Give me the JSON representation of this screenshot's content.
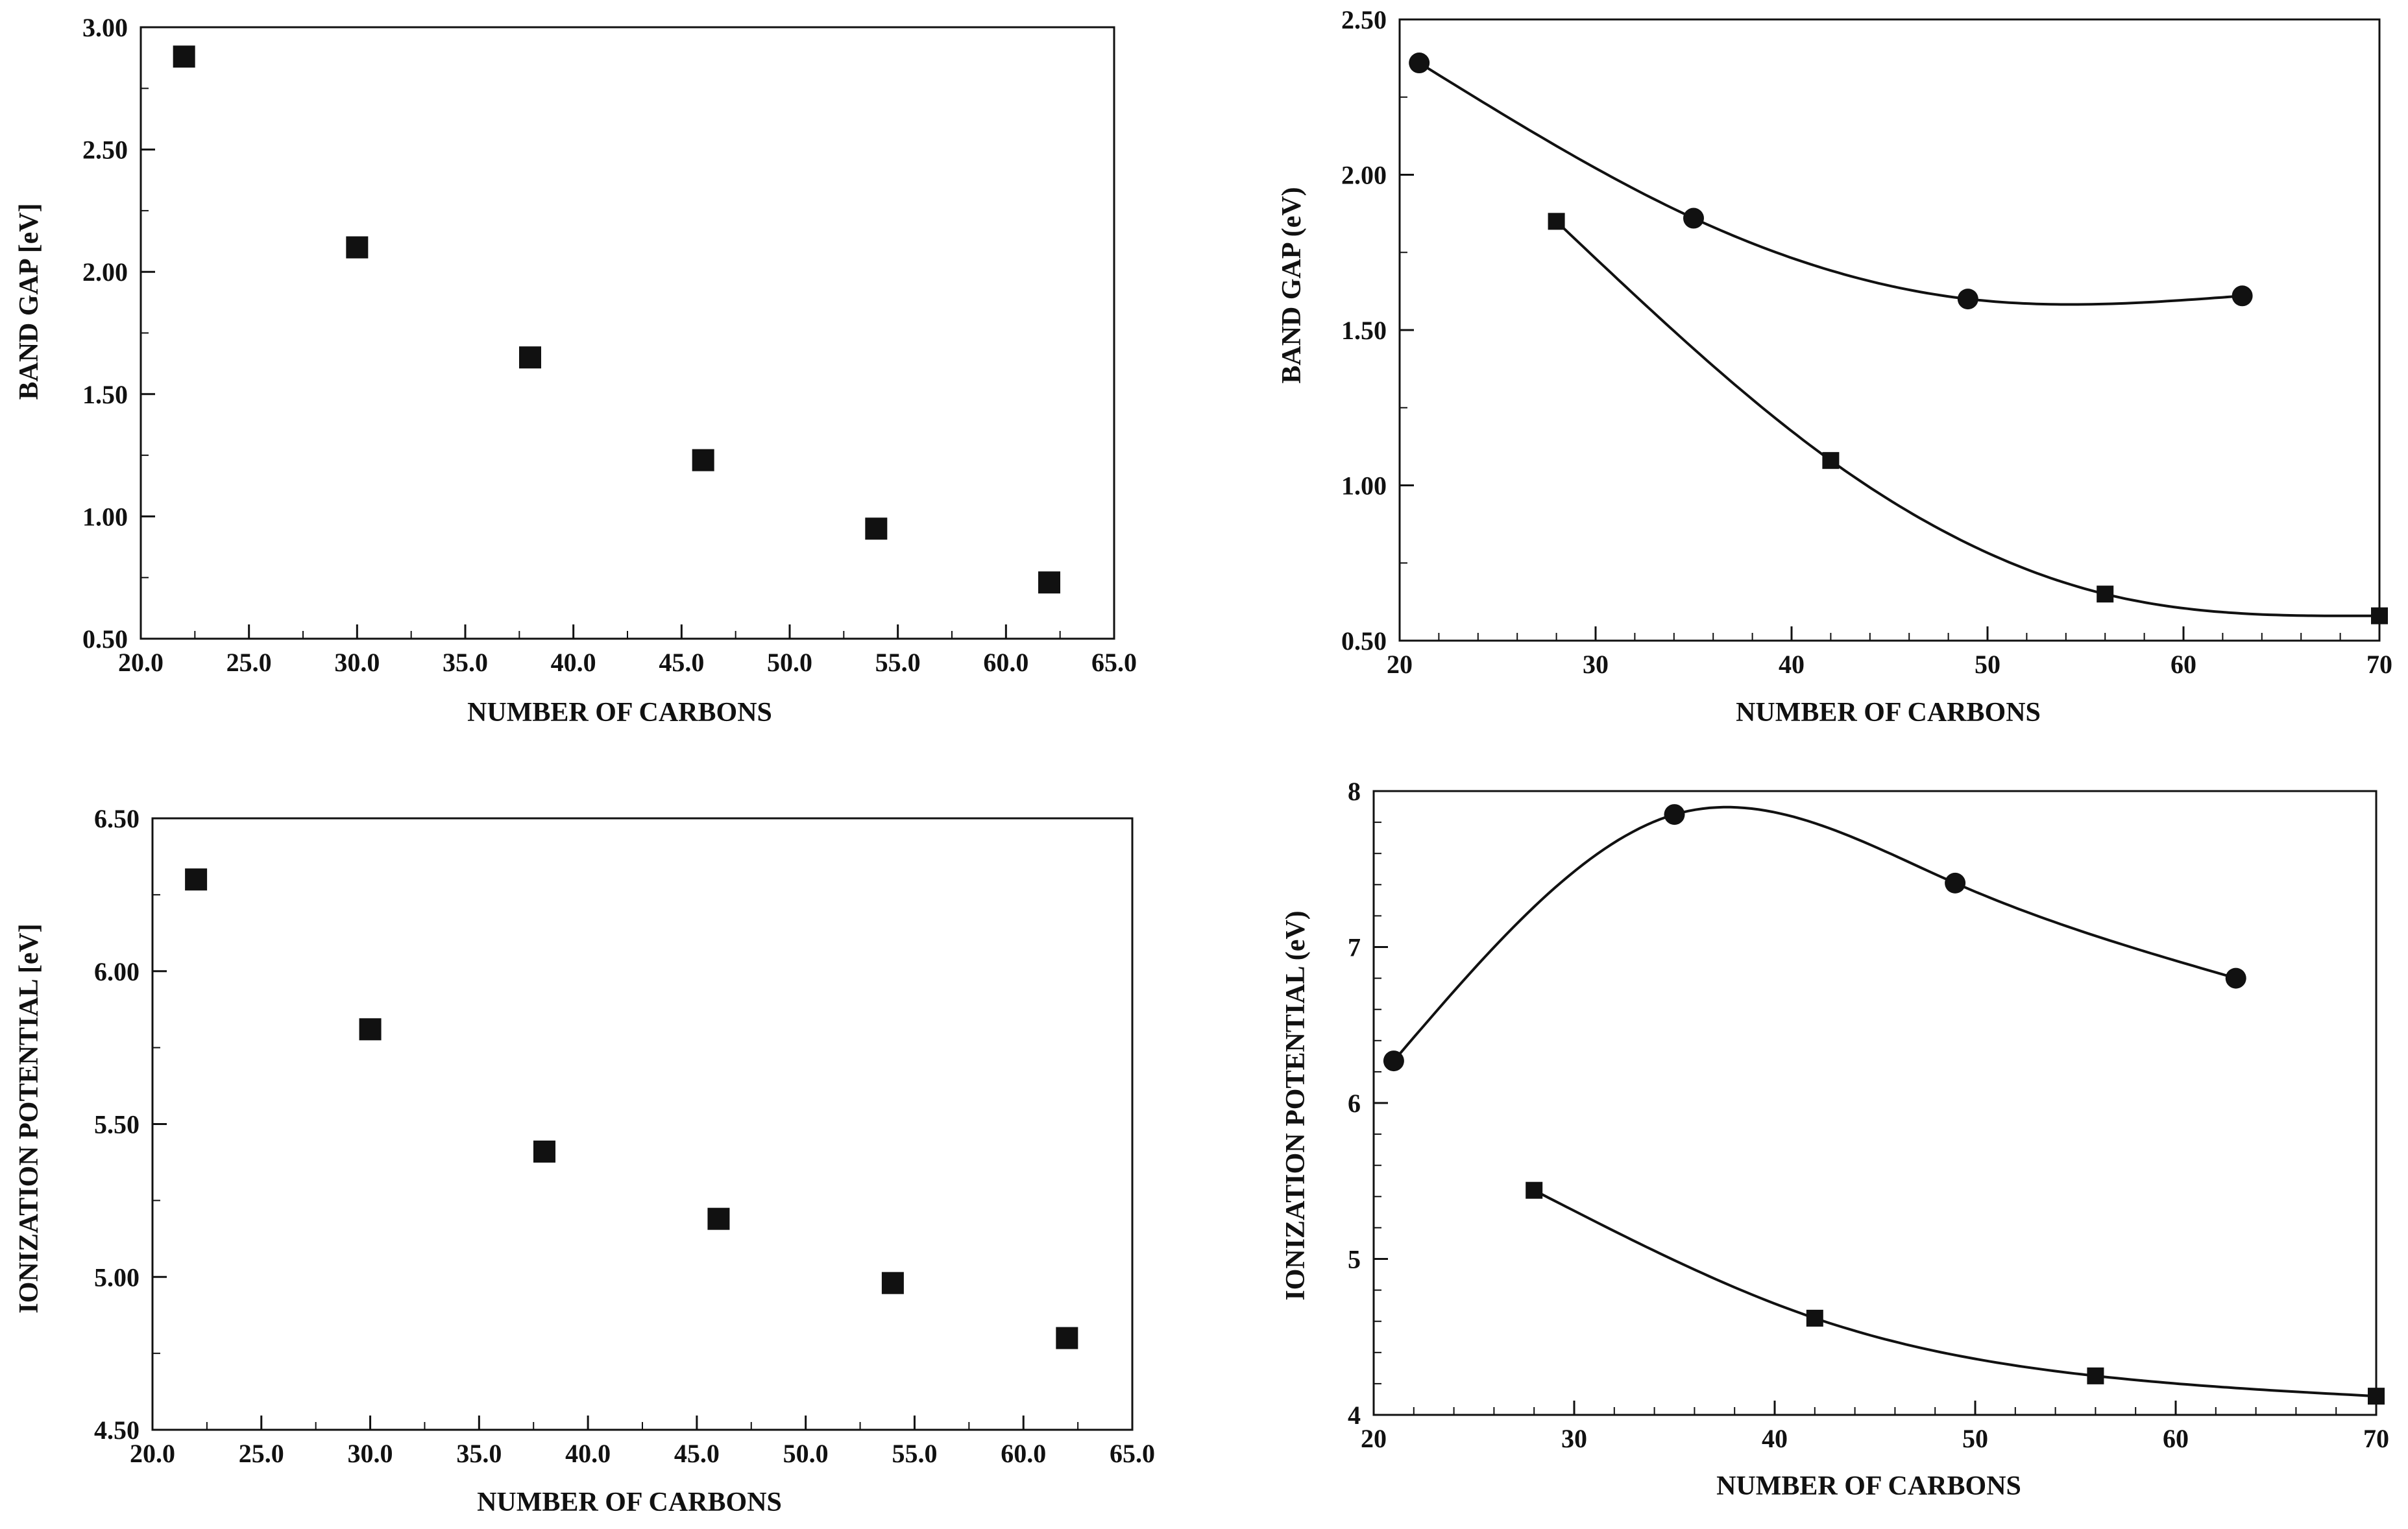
{
  "figure": {
    "background_color": "#ffffff",
    "ink_color": "#111111"
  },
  "chart_data": [
    {
      "id": "top-left",
      "type": "scatter",
      "title": "",
      "xlabel": "NUMBER OF CARBONS",
      "ylabel": "BAND GAP [eV]",
      "xlim": [
        20,
        65
      ],
      "ylim": [
        0.5,
        3.0
      ],
      "grid": false,
      "xticks": [
        "20.0",
        "25.0",
        "30.0",
        "35.0",
        "40.0",
        "45.0",
        "50.0",
        "55.0",
        "60.0",
        "65.0"
      ],
      "yticks": [
        "0.50",
        "1.00",
        "1.50",
        "2.00",
        "2.50",
        "3.00"
      ],
      "series": [
        {
          "name": "squares",
          "marker": "square",
          "curve": false,
          "x": [
            22,
            30,
            38,
            46,
            54,
            62
          ],
          "y": [
            2.88,
            2.1,
            1.65,
            1.23,
            0.95,
            0.73
          ]
        }
      ]
    },
    {
      "id": "top-right",
      "type": "line",
      "title": "",
      "xlabel": "NUMBER OF CARBONS",
      "ylabel": "BAND GAP (eV)",
      "xlim": [
        20,
        70
      ],
      "ylim": [
        0.5,
        2.5
      ],
      "grid": false,
      "xticks": [
        "20",
        "30",
        "40",
        "50",
        "60",
        "70"
      ],
      "yticks": [
        "0.50",
        "1.00",
        "1.50",
        "2.00",
        "2.50"
      ],
      "series": [
        {
          "name": "circles",
          "marker": "circle",
          "curve": true,
          "x": [
            21,
            35,
            49,
            63
          ],
          "y": [
            2.36,
            1.86,
            1.6,
            1.61
          ]
        },
        {
          "name": "squares",
          "marker": "square",
          "curve": true,
          "x": [
            28,
            42,
            56,
            70
          ],
          "y": [
            1.85,
            1.08,
            0.65,
            0.58
          ]
        }
      ]
    },
    {
      "id": "bottom-left",
      "type": "scatter",
      "title": "",
      "xlabel": "NUMBER OF CARBONS",
      "ylabel": "IONIZATION POTENTIAL [eV]",
      "xlim": [
        20,
        65
      ],
      "ylim": [
        4.5,
        6.5
      ],
      "grid": false,
      "xticks": [
        "20.0",
        "25.0",
        "30.0",
        "35.0",
        "40.0",
        "45.0",
        "50.0",
        "55.0",
        "60.0",
        "65.0"
      ],
      "yticks": [
        "4.50",
        "5.00",
        "5.50",
        "6.00",
        "6.50"
      ],
      "series": [
        {
          "name": "squares",
          "marker": "square",
          "curve": false,
          "x": [
            22,
            30,
            38,
            46,
            54,
            62
          ],
          "y": [
            6.3,
            5.81,
            5.41,
            5.19,
            4.98,
            4.8
          ]
        }
      ]
    },
    {
      "id": "bottom-right",
      "type": "line",
      "title": "",
      "xlabel": "NUMBER OF CARBONS",
      "ylabel": "IONIZATION POTENTIAL (eV)",
      "xlim": [
        20,
        70
      ],
      "ylim": [
        4,
        8
      ],
      "grid": false,
      "xticks": [
        "20",
        "30",
        "40",
        "50",
        "60",
        "70"
      ],
      "yticks": [
        "4",
        "5",
        "6",
        "7",
        "8"
      ],
      "series": [
        {
          "name": "circles",
          "marker": "circle",
          "curve": true,
          "x": [
            21,
            35,
            49,
            63
          ],
          "y": [
            6.27,
            7.85,
            7.41,
            6.8
          ]
        },
        {
          "name": "squares",
          "marker": "square",
          "curve": true,
          "x": [
            28,
            42,
            56,
            70
          ],
          "y": [
            5.44,
            4.62,
            4.25,
            4.12
          ]
        }
      ]
    }
  ]
}
